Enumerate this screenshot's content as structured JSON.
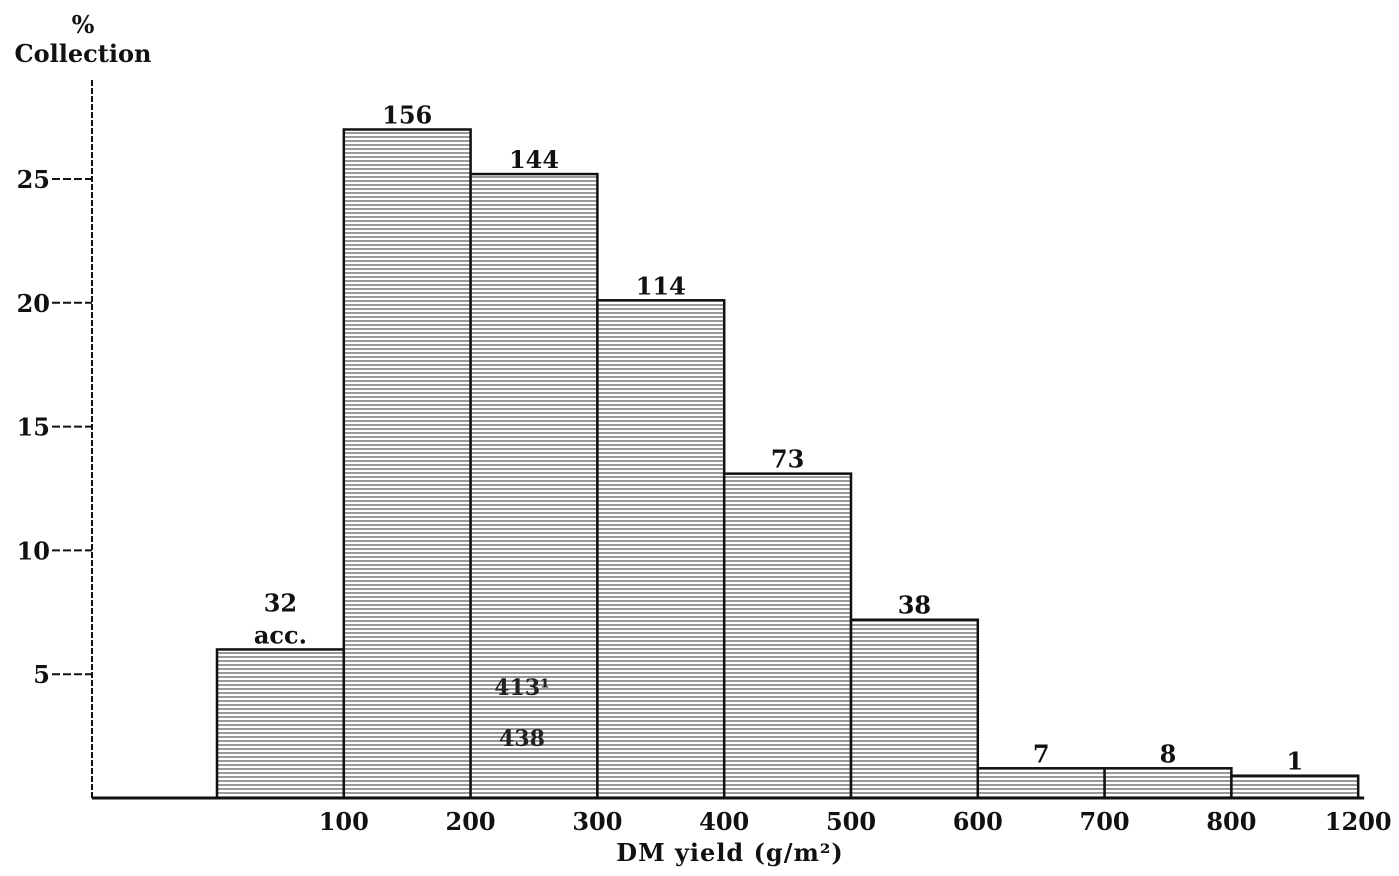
{
  "chart_data": {
    "type": "bar",
    "ylabel_line1": "%",
    "ylabel_line2": "Collection",
    "xlabel": "DM yield (g/m²)",
    "x_tick_labels": [
      "100",
      "200",
      "300",
      "400",
      "500",
      "600",
      "700",
      "800",
      "1200"
    ],
    "y_ticks": [
      5,
      10,
      15,
      20,
      25
    ],
    "y_tick_labels": [
      "5",
      "10",
      "15",
      "20",
      "25"
    ],
    "ylim": [
      0,
      27
    ],
    "bins": [
      {
        "from": "0",
        "to": "100",
        "percent": 6.0,
        "count_label": "32"
      },
      {
        "from": "100",
        "to": "200",
        "percent": 27.0,
        "count_label": "156"
      },
      {
        "from": "200",
        "to": "300",
        "percent": 25.2,
        "count_label": "144"
      },
      {
        "from": "300",
        "to": "400",
        "percent": 20.1,
        "count_label": "114"
      },
      {
        "from": "400",
        "to": "500",
        "percent": 13.1,
        "count_label": "73"
      },
      {
        "from": "500",
        "to": "600",
        "percent": 7.2,
        "count_label": "38"
      },
      {
        "from": "600",
        "to": "700",
        "percent": 1.2,
        "count_label": "7"
      },
      {
        "from": "700",
        "to": "800",
        "percent": 1.2,
        "count_label": "8"
      },
      {
        "from": "800",
        "to": "1200",
        "percent": 0.9,
        "count_label": "1"
      }
    ],
    "first_bar_unit": "acc.",
    "annotations": [
      "413¹",
      "438"
    ],
    "grid": false,
    "legend": "none"
  }
}
